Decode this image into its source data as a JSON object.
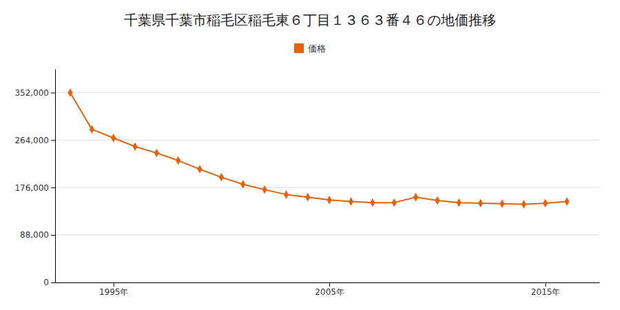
{
  "chart_data": {
    "type": "line",
    "title": "千葉県千葉市稲毛区稲毛東６丁目１３６３番４６の地価推移",
    "x": [
      1993,
      1994,
      1995,
      1996,
      1997,
      1998,
      1999,
      2000,
      2001,
      2002,
      2003,
      2004,
      2005,
      2006,
      2007,
      2008,
      2009,
      2010,
      2011,
      2012,
      2013,
      2014,
      2015,
      2016
    ],
    "series": [
      {
        "name": "価格",
        "color": "#E8610A",
        "marker": "diamond",
        "values": [
          352000,
          284000,
          268000,
          252000,
          240000,
          226000,
          210000,
          195000,
          182000,
          172000,
          163000,
          158000,
          153000,
          150000,
          148000,
          148000,
          158000,
          152000,
          148000,
          147000,
          146000,
          145000,
          147000,
          150000
        ]
      }
    ],
    "xlim": [
      1992.3,
      2017.5
    ],
    "xticks": [
      {
        "value": 1995,
        "label": "1995年"
      },
      {
        "value": 2005,
        "label": "2005年"
      },
      {
        "value": 2015,
        "label": "2015年"
      }
    ],
    "ylim": [
      0,
      396000
    ],
    "yticks": [
      0,
      {
        "value": 88000,
        "label": "88,000"
      },
      {
        "value": 176000,
        "label": "176,000"
      },
      {
        "value": 264000,
        "label": "264,000"
      },
      {
        "value": 352000,
        "label": "352,000"
      }
    ],
    "grid": true,
    "legend": "top"
  }
}
